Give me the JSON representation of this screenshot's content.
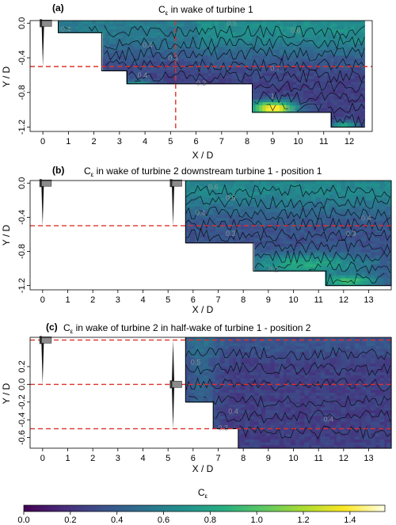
{
  "colors": {
    "turbine_line": "#e0302b",
    "frame": "#000000",
    "colormap": [
      "#440154",
      "#472c7a",
      "#3b528b",
      "#2c728e",
      "#21918c",
      "#28ae80",
      "#5ec962",
      "#addc30",
      "#fde725",
      "#ffffe8"
    ]
  },
  "chart_data": [
    {
      "type": "heatmap",
      "panel": "(a)",
      "title_prefix": "C",
      "title_sub": "ε",
      "title_rest": " in wake of turbine 1",
      "xlabel": "X / D",
      "ylabel": "Y / D",
      "xlim": [
        -0.5,
        12.9
      ],
      "ylim": [
        -1.25,
        0.03
      ],
      "xticks": [
        0,
        1,
        2,
        3,
        4,
        5,
        6,
        7,
        8,
        9,
        10,
        11,
        12
      ],
      "yticks": [
        0.0,
        -0.4,
        -0.8,
        -1.2
      ],
      "turbines": [
        {
          "x": 0,
          "hub_y": 0.0,
          "diameter": 1.0
        }
      ],
      "reference_lines_y": [
        -0.5
      ],
      "reference_lines_x": [
        5.2
      ],
      "measurement_domain_steps": [
        [
          0.6,
          2.3,
          -0.11
        ],
        [
          2.3,
          3.3,
          -0.55
        ],
        [
          3.3,
          8.2,
          -0.7
        ],
        [
          8.2,
          11.3,
          -1.03
        ],
        [
          11.3,
          12.6,
          -1.2
        ]
      ],
      "contour_labels": [
        {
          "text": "0.4",
          "x": 0.9,
          "y": -0.1
        },
        {
          "text": "0.5",
          "x": 7.4,
          "y": -0.03
        },
        {
          "text": "0.6",
          "x": 9.9,
          "y": -0.11
        },
        {
          "text": "0.3",
          "x": 5.1,
          "y": -0.43
        },
        {
          "text": "0.4",
          "x": 4.1,
          "y": -0.28
        },
        {
          "text": "0.4",
          "x": 3.9,
          "y": -0.63
        },
        {
          "text": "0.3",
          "x": 6.2,
          "y": -0.72
        },
        {
          "text": "0.7",
          "x": 9.1,
          "y": -0.55
        },
        {
          "text": "0.4",
          "x": 9.7,
          "y": -1.02
        },
        {
          "text": "1",
          "x": 9.0,
          "y": -0.87
        }
      ]
    },
    {
      "type": "heatmap",
      "panel": "(b)",
      "title_prefix": "C",
      "title_sub": "ε",
      "title_rest": " in wake of turbine 2 downstream turbine 1 - position 1",
      "xlabel": "X / D",
      "ylabel": "Y / D",
      "xlim": [
        -0.5,
        13.9
      ],
      "ylim": [
        -1.25,
        0.03
      ],
      "xticks": [
        0,
        1,
        2,
        3,
        4,
        5,
        6,
        7,
        8,
        9,
        10,
        11,
        12,
        13
      ],
      "yticks": [
        0.0,
        -0.4,
        -0.8,
        -1.2
      ],
      "turbines": [
        {
          "x": 0,
          "hub_y": 0.0,
          "diameter": 1.0
        },
        {
          "x": 5.2,
          "hub_y": 0.0,
          "diameter": 1.0
        }
      ],
      "reference_lines_y": [
        -0.5
      ],
      "reference_lines_x": [],
      "measurement_domain_steps": [
        [
          5.7,
          8.4,
          -0.7
        ],
        [
          8.4,
          11.3,
          -1.03
        ],
        [
          11.3,
          13.9,
          -1.2
        ]
      ],
      "contour_labels": [
        {
          "text": "0.6",
          "x": 6.8,
          "y": -0.07
        },
        {
          "text": "0.5",
          "x": 7.5,
          "y": -0.2
        },
        {
          "text": "0.4",
          "x": 6.3,
          "y": -0.38
        },
        {
          "text": "0.4",
          "x": 12.9,
          "y": -0.44
        },
        {
          "text": "0.3",
          "x": 7.5,
          "y": -0.62
        },
        {
          "text": "0.3",
          "x": 12.3,
          "y": -0.62
        },
        {
          "text": "0.2",
          "x": 9.2,
          "y": -1.04
        }
      ]
    },
    {
      "type": "heatmap",
      "panel": "(c)",
      "title_prefix": "C",
      "title_sub": "ε",
      "title_rest": " in wake of turbine 2 in half-wake of turbine 1 - position 2",
      "xlabel": "X / D",
      "ylabel": "Y / D",
      "xlim": [
        -0.5,
        13.9
      ],
      "ylim": [
        -0.72,
        0.53
      ],
      "xticks": [
        0,
        1,
        2,
        3,
        4,
        5,
        6,
        7,
        8,
        9,
        10,
        11,
        12,
        13
      ],
      "yticks": [
        0.2,
        0.0,
        -0.2,
        -0.4,
        -0.6
      ],
      "turbines": [
        {
          "x": 0,
          "hub_y": 0.5,
          "diameter": 1.0
        },
        {
          "x": 5.2,
          "hub_y": 0.0,
          "diameter": 1.0
        }
      ],
      "reference_lines_y": [
        0.5,
        0.0,
        -0.5
      ],
      "reference_lines_x": [],
      "measurement_domain_steps": [
        [
          5.7,
          6.2,
          -0.2
        ],
        [
          6.2,
          6.8,
          -0.2
        ],
        [
          6.8,
          7.8,
          -0.5
        ],
        [
          7.8,
          13.9,
          -0.72
        ]
      ],
      "contour_labels": [
        {
          "text": "0.5",
          "x": 6.1,
          "y": 0.22
        },
        {
          "text": "0.4",
          "x": 11.4,
          "y": -0.42
        },
        {
          "text": "0.4",
          "x": 7.6,
          "y": -0.33
        },
        {
          "text": "0.3",
          "x": 7.2,
          "y": -0.52
        }
      ]
    }
  ],
  "colorbar": {
    "label_prefix": "C",
    "label_sub": "ε",
    "ticks": [
      "0.0",
      "0.2",
      "0.4",
      "0.6",
      "0.8",
      "1.0",
      "1.2",
      "1.4"
    ],
    "range": [
      0.0,
      1.55
    ]
  }
}
